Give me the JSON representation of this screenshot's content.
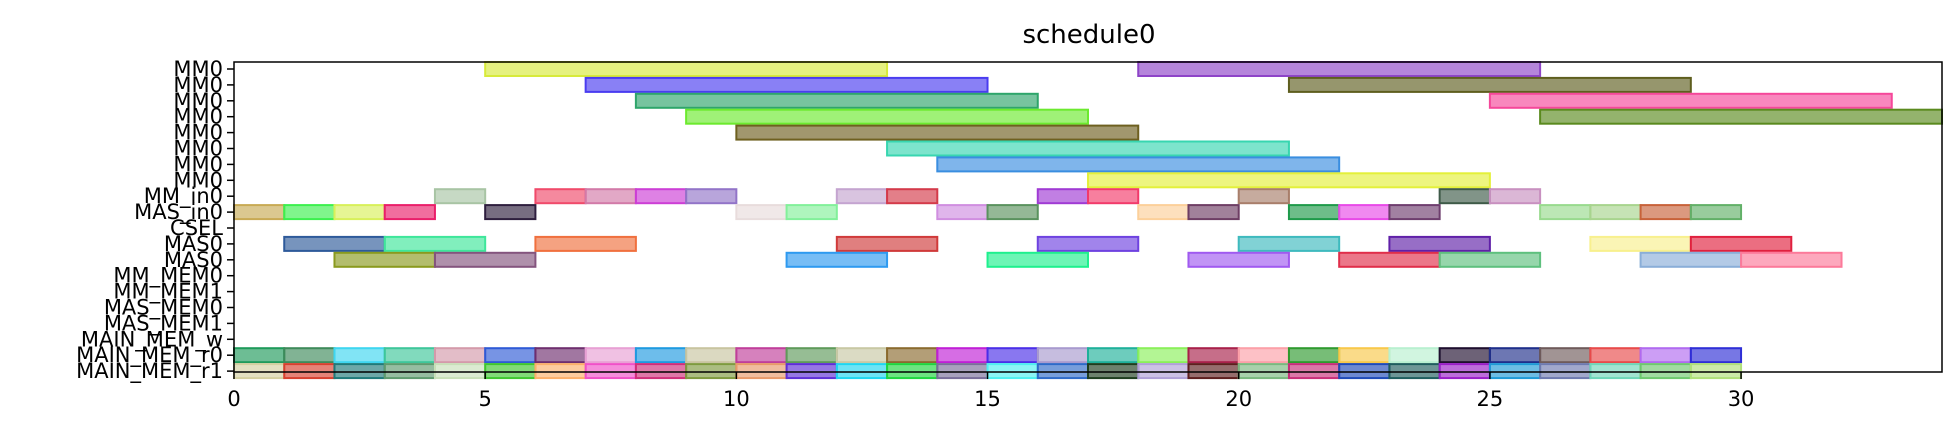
{
  "chart_data": {
    "type": "gantt",
    "title": "schedule0",
    "xlabel": "",
    "ylabel": "",
    "xlim": [
      0,
      34
    ],
    "xticks": [
      0,
      5,
      10,
      15,
      20,
      25,
      30
    ],
    "rows": [
      "MM0",
      "MM0",
      "MM0",
      "MM0",
      "MM0",
      "MM0",
      "MM0",
      "MM0",
      "MM_in0",
      "MAS_in0",
      "CSEL",
      "MAS0",
      "MAS0",
      "MM_MEM0",
      "MM_MEM1",
      "MAS_MEM0",
      "MAS_MEM1",
      "MAIN_MEM_w",
      "MAIN_MEM_r0",
      "MAIN_MEM_r1"
    ],
    "tasks": [
      {
        "row": 0,
        "start": 5,
        "end": 13,
        "color": "#d7ea3a"
      },
      {
        "row": 0,
        "start": 18,
        "end": 26,
        "color": "#8e44c8"
      },
      {
        "row": 1,
        "start": 7,
        "end": 15,
        "color": "#4a3cf0"
      },
      {
        "row": 1,
        "start": 21,
        "end": 29,
        "color": "#5e5e1e"
      },
      {
        "row": 2,
        "start": 8,
        "end": 16,
        "color": "#2ea56b"
      },
      {
        "row": 2,
        "start": 25,
        "end": 33,
        "color": "#f5479a"
      },
      {
        "row": 3,
        "start": 9,
        "end": 17,
        "color": "#6cea2e"
      },
      {
        "row": 3,
        "start": 26,
        "end": 34,
        "color": "#5a8a1e"
      },
      {
        "row": 4,
        "start": 10,
        "end": 18,
        "color": "#6e6020"
      },
      {
        "row": 5,
        "start": 13,
        "end": 21,
        "color": "#38d6b0"
      },
      {
        "row": 6,
        "start": 14,
        "end": 22,
        "color": "#3a8ee0"
      },
      {
        "row": 7,
        "start": 17,
        "end": 25,
        "color": "#e4f03a"
      },
      {
        "row": 8,
        "start": 4,
        "end": 5,
        "color": "#a8c4a4"
      },
      {
        "row": 8,
        "start": 6,
        "end": 7,
        "color": "#f04a6a"
      },
      {
        "row": 8,
        "start": 7,
        "end": 8,
        "color": "#d27aa8"
      },
      {
        "row": 8,
        "start": 8,
        "end": 9,
        "color": "#cc3ed6"
      },
      {
        "row": 8,
        "start": 9,
        "end": 10,
        "color": "#9274c8"
      },
      {
        "row": 8,
        "start": 12,
        "end": 13,
        "color": "#c4a4d0"
      },
      {
        "row": 8,
        "start": 13,
        "end": 14,
        "color": "#d43a4a"
      },
      {
        "row": 8,
        "start": 16,
        "end": 17,
        "color": "#a03ad4"
      },
      {
        "row": 8,
        "start": 17,
        "end": 18,
        "color": "#f23a6a"
      },
      {
        "row": 8,
        "start": 20,
        "end": 21,
        "color": "#a87e6a"
      },
      {
        "row": 8,
        "start": 24,
        "end": 25,
        "color": "#3e5a48"
      },
      {
        "row": 8,
        "start": 25,
        "end": 26,
        "color": "#c890c0"
      },
      {
        "row": 9,
        "start": 0,
        "end": 1,
        "color": "#c8aa54"
      },
      {
        "row": 9,
        "start": 1,
        "end": 2,
        "color": "#3cf04e"
      },
      {
        "row": 9,
        "start": 2,
        "end": 3,
        "color": "#d8f05a"
      },
      {
        "row": 9,
        "start": 3,
        "end": 4,
        "color": "#ea1e6a"
      },
      {
        "row": 9,
        "start": 5,
        "end": 6,
        "color": "#2e1e3e"
      },
      {
        "row": 9,
        "start": 10,
        "end": 11,
        "color": "#e8dcdc"
      },
      {
        "row": 9,
        "start": 11,
        "end": 12,
        "color": "#82f09a"
      },
      {
        "row": 9,
        "start": 14,
        "end": 15,
        "color": "#d08ee0"
      },
      {
        "row": 9,
        "start": 15,
        "end": 16,
        "color": "#5a925e"
      },
      {
        "row": 9,
        "start": 18,
        "end": 19,
        "color": "#fcd09a"
      },
      {
        "row": 9,
        "start": 19,
        "end": 20,
        "color": "#6e3e64"
      },
      {
        "row": 9,
        "start": 21,
        "end": 22,
        "color": "#1e9a4a"
      },
      {
        "row": 9,
        "start": 22,
        "end": 23,
        "color": "#e84ae8"
      },
      {
        "row": 9,
        "start": 23,
        "end": 24,
        "color": "#6e3e6e"
      },
      {
        "row": 9,
        "start": 26,
        "end": 27,
        "color": "#98da8e"
      },
      {
        "row": 9,
        "start": 27,
        "end": 28,
        "color": "#a8d48e"
      },
      {
        "row": 9,
        "start": 28,
        "end": 29,
        "color": "#c8623a"
      },
      {
        "row": 9,
        "start": 29,
        "end": 30,
        "color": "#62b068"
      },
      {
        "row": 11,
        "start": 1,
        "end": 3,
        "color": "#2e5a9a"
      },
      {
        "row": 11,
        "start": 3,
        "end": 5,
        "color": "#3ee69a"
      },
      {
        "row": 11,
        "start": 6,
        "end": 8,
        "color": "#f0703e"
      },
      {
        "row": 11,
        "start": 12,
        "end": 14,
        "color": "#d03a3a"
      },
      {
        "row": 11,
        "start": 16,
        "end": 18,
        "color": "#6e42e0"
      },
      {
        "row": 11,
        "start": 20,
        "end": 22,
        "color": "#3ebabe"
      },
      {
        "row": 11,
        "start": 23,
        "end": 25,
        "color": "#6020a8"
      },
      {
        "row": 11,
        "start": 27,
        "end": 29,
        "color": "#f8f08e"
      },
      {
        "row": 11,
        "start": 29,
        "end": 31,
        "color": "#e0203e"
      },
      {
        "row": 12,
        "start": 2,
        "end": 4,
        "color": "#8a9a1e"
      },
      {
        "row": 12,
        "start": 4,
        "end": 6,
        "color": "#84547e"
      },
      {
        "row": 12,
        "start": 11,
        "end": 13,
        "color": "#2e9af0"
      },
      {
        "row": 12,
        "start": 15,
        "end": 17,
        "color": "#1ef08e"
      },
      {
        "row": 12,
        "start": 19,
        "end": 21,
        "color": "#a05af0"
      },
      {
        "row": 12,
        "start": 22,
        "end": 24,
        "color": "#e02e4a"
      },
      {
        "row": 12,
        "start": 24,
        "end": 26,
        "color": "#5ec07e"
      },
      {
        "row": 12,
        "start": 28,
        "end": 30,
        "color": "#8aaed8"
      },
      {
        "row": 12,
        "start": 30,
        "end": 32,
        "color": "#fc7a9a"
      },
      {
        "row": 18,
        "start": 0,
        "end": 1,
        "color": "#1e9a5a"
      },
      {
        "row": 18,
        "start": 1,
        "end": 2,
        "color": "#3e8a5a"
      },
      {
        "row": 18,
        "start": 2,
        "end": 3,
        "color": "#3ed6f0"
      },
      {
        "row": 18,
        "start": 3,
        "end": 4,
        "color": "#3ec69a"
      },
      {
        "row": 18,
        "start": 4,
        "end": 5,
        "color": "#d49aaa"
      },
      {
        "row": 18,
        "start": 5,
        "end": 6,
        "color": "#2e5ad6"
      },
      {
        "row": 18,
        "start": 6,
        "end": 7,
        "color": "#6e2e6e"
      },
      {
        "row": 18,
        "start": 7,
        "end": 8,
        "color": "#e8a0d4"
      },
      {
        "row": 18,
        "start": 8,
        "end": 9,
        "color": "#1e9ae0"
      },
      {
        "row": 18,
        "start": 9,
        "end": 10,
        "color": "#c8c4a0"
      },
      {
        "row": 18,
        "start": 10,
        "end": 11,
        "color": "#c03e9a"
      },
      {
        "row": 18,
        "start": 11,
        "end": 12,
        "color": "#5e9a5a"
      },
      {
        "row": 18,
        "start": 12,
        "end": 13,
        "color": "#c8c8a4"
      },
      {
        "row": 18,
        "start": 13,
        "end": 14,
        "color": "#8a6a2e"
      },
      {
        "row": 18,
        "start": 14,
        "end": 15,
        "color": "#c01ed6"
      },
      {
        "row": 18,
        "start": 15,
        "end": 16,
        "color": "#4a2ee8"
      },
      {
        "row": 18,
        "start": 16,
        "end": 17,
        "color": "#a89ace"
      },
      {
        "row": 18,
        "start": 17,
        "end": 18,
        "color": "#1eb09a"
      },
      {
        "row": 18,
        "start": 18,
        "end": 19,
        "color": "#8af05a"
      },
      {
        "row": 18,
        "start": 19,
        "end": 20,
        "color": "#a8204a"
      },
      {
        "row": 18,
        "start": 20,
        "end": 21,
        "color": "#fca0a8"
      },
      {
        "row": 18,
        "start": 21,
        "end": 22,
        "color": "#2e9a2e"
      },
      {
        "row": 18,
        "start": 22,
        "end": 23,
        "color": "#f8c84a"
      },
      {
        "row": 18,
        "start": 23,
        "end": 24,
        "color": "#b8f0d0"
      },
      {
        "row": 18,
        "start": 24,
        "end": 25,
        "color": "#1e0e2e"
      },
      {
        "row": 18,
        "start": 25,
        "end": 26,
        "color": "#1e2e8a"
      },
      {
        "row": 18,
        "start": 26,
        "end": 27,
        "color": "#6e5a5a"
      },
      {
        "row": 18,
        "start": 27,
        "end": 28,
        "color": "#e84a4a"
      },
      {
        "row": 18,
        "start": 28,
        "end": 29,
        "color": "#b06af0"
      },
      {
        "row": 18,
        "start": 29,
        "end": 30,
        "color": "#2e2ed6"
      },
      {
        "row": 19,
        "start": 0,
        "end": 1,
        "color": "#d4d0a0"
      },
      {
        "row": 19,
        "start": 1,
        "end": 2,
        "color": "#d8402e"
      },
      {
        "row": 19,
        "start": 2,
        "end": 3,
        "color": "#1e7a7a"
      },
      {
        "row": 19,
        "start": 3,
        "end": 4,
        "color": "#5e9a6e"
      },
      {
        "row": 19,
        "start": 4,
        "end": 5,
        "color": "#c8e0b8"
      },
      {
        "row": 19,
        "start": 5,
        "end": 6,
        "color": "#3ec62e"
      },
      {
        "row": 19,
        "start": 6,
        "end": 7,
        "color": "#fcb06a"
      },
      {
        "row": 19,
        "start": 7,
        "end": 8,
        "color": "#f050c8"
      },
      {
        "row": 19,
        "start": 8,
        "end": 9,
        "color": "#d02e7a"
      },
      {
        "row": 19,
        "start": 9,
        "end": 10,
        "color": "#7e9a3e"
      },
      {
        "row": 19,
        "start": 10,
        "end": 11,
        "color": "#e89a6a"
      },
      {
        "row": 19,
        "start": 11,
        "end": 12,
        "color": "#5e2ed6"
      },
      {
        "row": 19,
        "start": 12,
        "end": 13,
        "color": "#1ed6f0"
      },
      {
        "row": 19,
        "start": 13,
        "end": 14,
        "color": "#1ed63e"
      },
      {
        "row": 19,
        "start": 14,
        "end": 15,
        "color": "#7a6e9a"
      },
      {
        "row": 19,
        "start": 15,
        "end": 16,
        "color": "#4ef0f0"
      },
      {
        "row": 19,
        "start": 16,
        "end": 17,
        "color": "#2e6ac8"
      },
      {
        "row": 19,
        "start": 17,
        "end": 18,
        "color": "#1e3e1e"
      },
      {
        "row": 19,
        "start": 18,
        "end": 19,
        "color": "#b0a0d8"
      },
      {
        "row": 19,
        "start": 19,
        "end": 20,
        "color": "#5e1e1e"
      },
      {
        "row": 19,
        "start": 20,
        "end": 21,
        "color": "#7ab87e"
      },
      {
        "row": 19,
        "start": 21,
        "end": 22,
        "color": "#c82e7a"
      },
      {
        "row": 19,
        "start": 22,
        "end": 23,
        "color": "#1e4ab8"
      },
      {
        "row": 19,
        "start": 23,
        "end": 24,
        "color": "#1e5e5e"
      },
      {
        "row": 19,
        "start": 24,
        "end": 25,
        "color": "#9a1ec8"
      },
      {
        "row": 19,
        "start": 25,
        "end": 26,
        "color": "#1e9ad6"
      },
      {
        "row": 19,
        "start": 26,
        "end": 27,
        "color": "#6e7ab0"
      },
      {
        "row": 19,
        "start": 27,
        "end": 28,
        "color": "#6ed6b8"
      },
      {
        "row": 19,
        "start": 28,
        "end": 29,
        "color": "#6ec86e"
      },
      {
        "row": 19,
        "start": 29,
        "end": 30,
        "color": "#b0e07a"
      }
    ]
  }
}
